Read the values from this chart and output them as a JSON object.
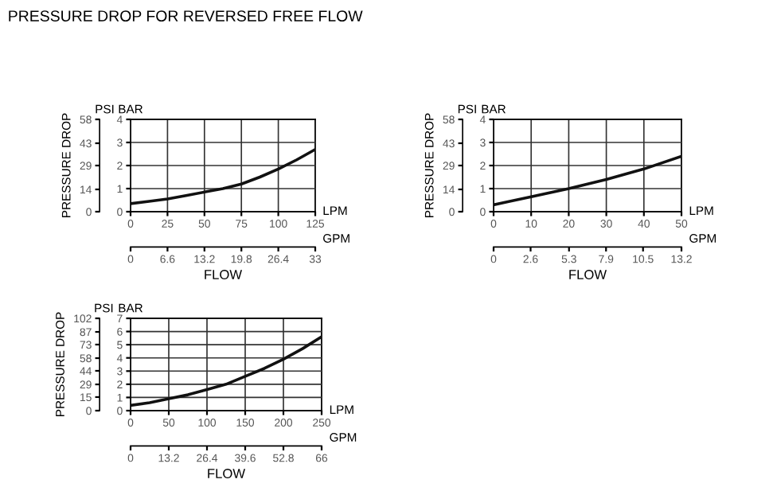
{
  "chart_data": [
    {
      "type": "line",
      "title": "PRESSURE DROP FOR REVERSED FREE FLOW",
      "xlabel": "FLOW",
      "ylabel": "PRESSURE DROP",
      "annotations": [
        "PSI",
        "BAR",
        "LPM",
        "GPM"
      ],
      "x": [
        0,
        12.5,
        25,
        37.5,
        50,
        62.5,
        75,
        87.5,
        100,
        112.5,
        125
      ],
      "series": [
        {
          "color": "#111111",
          "axis": "y2",
          "values": [
            0.35,
            0.45,
            0.55,
            0.7,
            0.85,
            1.0,
            1.2,
            1.5,
            1.85,
            2.25,
            2.7
          ]
        }
      ],
      "xlim": [
        0,
        125
      ],
      "xticks": [
        0,
        25,
        50,
        75,
        100,
        125
      ],
      "ylim": [
        0,
        58
      ],
      "yticks": [
        0,
        14,
        29,
        43,
        58
      ],
      "y2lim": [
        0,
        4
      ],
      "y2ticks": [
        0,
        1,
        2,
        3,
        4
      ],
      "x2lim": [
        0,
        33
      ],
      "x2ticks": [
        0,
        6.6,
        13.2,
        19.8,
        26.4,
        33
      ],
      "grid": true
    },
    {
      "type": "line",
      "xlabel": "FLOW",
      "ylabel": "PRESSURE DROP",
      "annotations": [
        "PSI",
        "BAR",
        "LPM",
        "GPM"
      ],
      "x": [
        0,
        10,
        20,
        30,
        40,
        50
      ],
      "series": [
        {
          "color": "#111111",
          "axis": "y2",
          "values": [
            0.3,
            0.65,
            1.0,
            1.4,
            1.85,
            2.4
          ]
        }
      ],
      "xlim": [
        0,
        50
      ],
      "xticks": [
        0,
        10,
        20,
        30,
        40,
        50
      ],
      "ylim": [
        0,
        58
      ],
      "yticks": [
        0,
        14,
        29,
        43,
        58
      ],
      "y2lim": [
        0,
        4
      ],
      "y2ticks": [
        0,
        1,
        2,
        3,
        4
      ],
      "x2lim": [
        0,
        13.2
      ],
      "x2ticks": [
        0,
        2.6,
        5.3,
        7.9,
        10.5,
        13.2
      ],
      "grid": true
    },
    {
      "type": "line",
      "xlabel": "FLOW",
      "ylabel": "PRESSURE DROP",
      "annotations": [
        "PSI",
        "BAR",
        "LPM",
        "GPM"
      ],
      "x": [
        0,
        25,
        50,
        75,
        100,
        125,
        150,
        175,
        200,
        225,
        250
      ],
      "series": [
        {
          "color": "#111111",
          "axis": "y2",
          "values": [
            0.4,
            0.6,
            0.9,
            1.2,
            1.6,
            2.0,
            2.6,
            3.2,
            3.9,
            4.7,
            5.6
          ]
        }
      ],
      "xlim": [
        0,
        250
      ],
      "xticks": [
        0,
        50,
        100,
        150,
        200,
        250
      ],
      "ylim": [
        0,
        102
      ],
      "yticks": [
        0,
        15,
        29,
        44,
        58,
        73,
        87,
        102
      ],
      "y2lim": [
        0,
        7
      ],
      "y2ticks": [
        0,
        1,
        2,
        3,
        4,
        5,
        6,
        7
      ],
      "x2lim": [
        0,
        66
      ],
      "x2ticks": [
        0,
        13.2,
        26.4,
        39.6,
        52.8,
        66
      ],
      "grid": true
    }
  ]
}
